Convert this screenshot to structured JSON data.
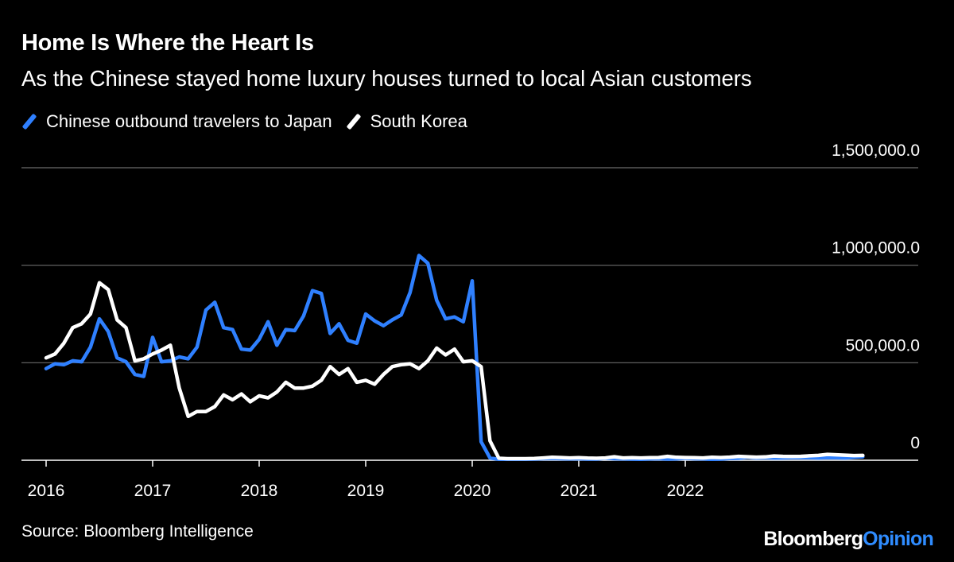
{
  "chart_data": {
    "type": "line",
    "title": "Home Is Where the Heart Is",
    "subtitle": "As the Chinese stayed home luxury houses turned to local Asian customers",
    "source": "Source: Bloomberg Intelligence",
    "brand": {
      "name": "Bloomberg",
      "suffix": "Opinion"
    },
    "xlabel": "",
    "ylabel": "",
    "x_ticks": [
      "2016",
      "2017",
      "2018",
      "2019",
      "2020",
      "2021",
      "2022"
    ],
    "y_ticks": [
      "0",
      "500,000.0",
      "1,000,000.0",
      "1,500,000.0"
    ],
    "y_tick_values": [
      0,
      500000,
      1000000,
      1500000
    ],
    "ylim": [
      0,
      1500000
    ],
    "x_start_year": 2016,
    "months_per_point": 1,
    "grid": true,
    "legend_position": "top-left",
    "series": [
      {
        "name": "Chinese outbound travelers to Japan",
        "color": "#2f80ff",
        "values": [
          470000,
          495000,
          490000,
          510000,
          505000,
          580000,
          725000,
          660000,
          525000,
          505000,
          440000,
          430000,
          630000,
          505000,
          510000,
          530000,
          520000,
          580000,
          770000,
          810000,
          680000,
          670000,
          570000,
          565000,
          620000,
          710000,
          590000,
          670000,
          665000,
          740000,
          870000,
          855000,
          650000,
          700000,
          615000,
          600000,
          750000,
          715000,
          690000,
          720000,
          745000,
          860000,
          1050000,
          1010000,
          820000,
          725000,
          735000,
          710000,
          920000,
          95000,
          12000,
          5000,
          5000,
          5000,
          5000,
          6000,
          8000,
          9000,
          8000,
          7000,
          8000,
          6000,
          6000,
          10000,
          8000,
          7000,
          6000,
          5000,
          7000,
          8000,
          6000,
          7000,
          10000,
          8000,
          7000,
          5000,
          6000,
          9000,
          10000,
          15000,
          12000,
          13000,
          11000,
          12000,
          13000,
          14000,
          13000,
          12000,
          14000,
          13000,
          12000,
          15000,
          18000
        ]
      },
      {
        "name": "South Korea",
        "color": "#ffffff",
        "values": [
          525000,
          545000,
          600000,
          680000,
          700000,
          750000,
          910000,
          875000,
          720000,
          680000,
          510000,
          520000,
          545000,
          565000,
          590000,
          370000,
          225000,
          250000,
          250000,
          275000,
          335000,
          310000,
          340000,
          300000,
          330000,
          320000,
          350000,
          400000,
          370000,
          370000,
          380000,
          410000,
          480000,
          440000,
          470000,
          400000,
          410000,
          390000,
          440000,
          480000,
          490000,
          495000,
          470000,
          510000,
          575000,
          540000,
          570000,
          505000,
          510000,
          480000,
          100000,
          10000,
          8000,
          8000,
          8000,
          9000,
          12000,
          15000,
          14000,
          12000,
          13000,
          11000,
          10000,
          12000,
          18000,
          12000,
          13000,
          12000,
          13000,
          14000,
          20000,
          15000,
          14000,
          13000,
          12000,
          15000,
          14000,
          16000,
          20000,
          18000,
          16000,
          17000,
          22000,
          20000,
          19000,
          20000,
          23000,
          25000,
          30000,
          28000,
          26000,
          24000,
          25000
        ]
      }
    ]
  }
}
